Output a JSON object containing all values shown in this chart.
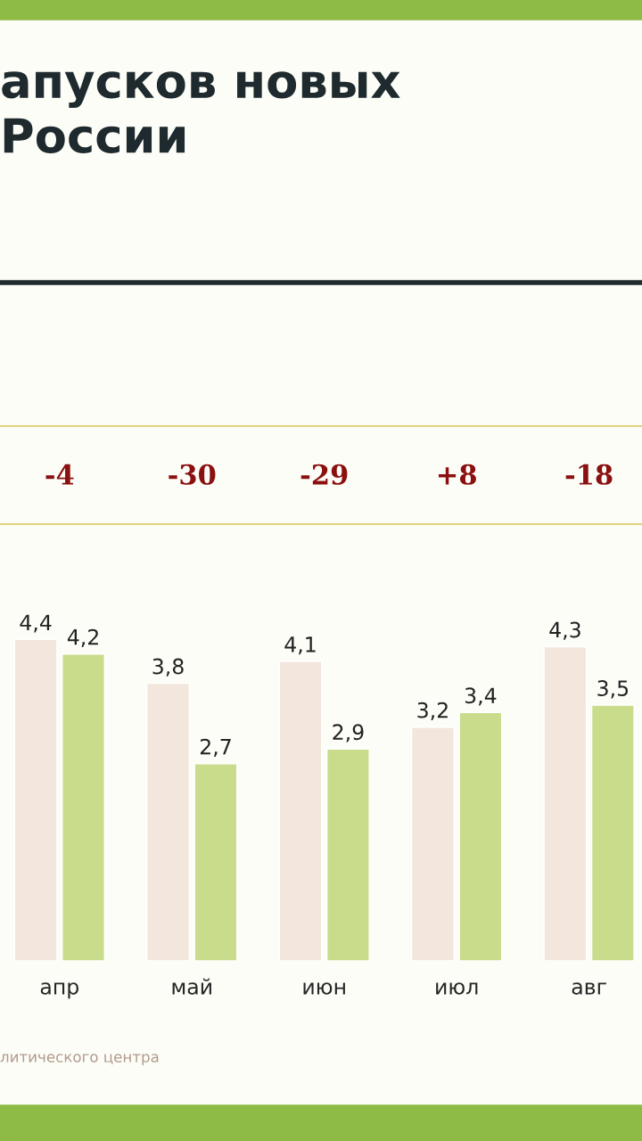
{
  "chart_data": {
    "type": "bar",
    "title": "апусков новых\nРоссии",
    "categories": [
      "апр",
      "май",
      "июн",
      "июл",
      "авг"
    ],
    "series": [
      {
        "color": "#f3e6dc",
        "values": [
          4.4,
          3.8,
          4.1,
          3.2,
          4.3
        ],
        "value_labels": [
          "4,4",
          "3,8",
          "4,1",
          "3,2",
          "4,3"
        ]
      },
      {
        "color": "#c8dc8c",
        "values": [
          4.2,
          2.7,
          2.9,
          3.4,
          3.5
        ],
        "value_labels": [
          "4,2",
          "2,7",
          "2,9",
          "3,4",
          "3,5"
        ]
      }
    ],
    "annotations": [
      "-4",
      "-30",
      "-29",
      "+8",
      "-18",
      "литического центра"
    ],
    "grid": false,
    "legend": false
  }
}
